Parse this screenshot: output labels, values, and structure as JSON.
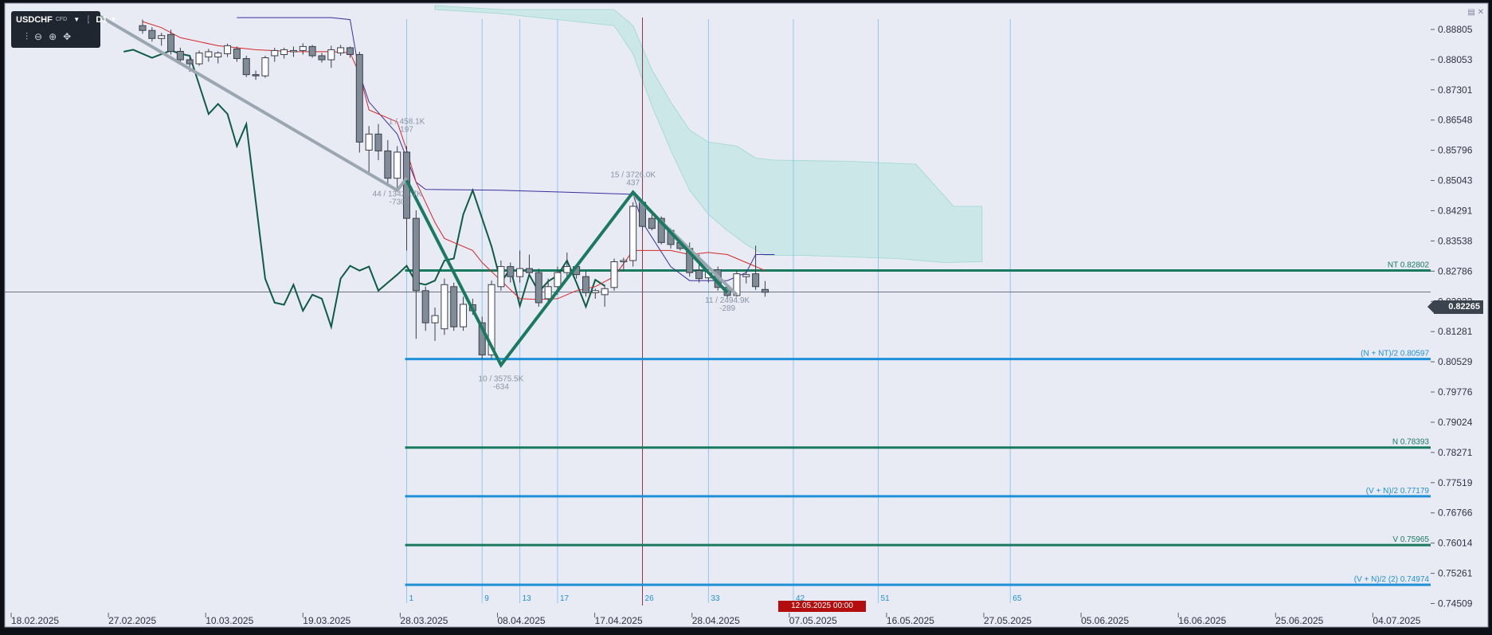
{
  "toolbar": {
    "symbol": "USDCHF",
    "symbol_tag": "CFD",
    "timeframe": "D1",
    "tools": [
      "indicators-icon",
      "zoom-out-icon",
      "zoom-in-icon",
      "crosshair-icon"
    ]
  },
  "colors": {
    "background": "#e8eaf4",
    "bull_candle": "#ffffff",
    "bear_candle": "#7f8b96",
    "candle_outline": "#3a3f4a",
    "tenkan": "#d62828",
    "kijun": "#3b2fa0",
    "chikou": "#0f5c46",
    "cloud": "#bfe6e2",
    "wave_green": "#1a7a60",
    "wave_grey": "#9aa6b0",
    "level_green": "#1a7a60",
    "level_blue": "#1e90d8",
    "vline": "#8fc9ee",
    "current_date_line": "#8a3a4a"
  },
  "current_price": "0.82265",
  "current_date_flag": "12.05.2025 00:00",
  "chart_data": {
    "type": "candlestick",
    "symbol": "USDCHF",
    "timeframe": "D1",
    "ylim": [
      0.7436,
      0.8934
    ],
    "y_ticks": [
      "0.88805",
      "0.88053",
      "0.87301",
      "0.86548",
      "0.85796",
      "0.85043",
      "0.84291",
      "0.83538",
      "0.82786",
      "0.82033",
      "0.81281",
      "0.80529",
      "0.79776",
      "0.79024",
      "0.78271",
      "0.77519",
      "0.76766",
      "0.76014",
      "0.75261",
      "0.74509"
    ],
    "x_labels": [
      "18.02.2025",
      "27.02.2025",
      "10.03.2025",
      "19.03.2025",
      "28.03.2025",
      "08.04.2025",
      "17.04.2025",
      "28.04.2025",
      "07.05.2025",
      "16.05.2025",
      "27.05.2025",
      "05.06.2025",
      "16.06.2025",
      "25.06.2025",
      "04.07.2025"
    ],
    "candles": [
      {
        "x": 0,
        "o": 0.889,
        "h": 0.8905,
        "l": 0.887,
        "c": 0.8878
      },
      {
        "x": 1,
        "o": 0.8878,
        "h": 0.8886,
        "l": 0.885,
        "c": 0.8858
      },
      {
        "x": 2,
        "o": 0.8858,
        "h": 0.8872,
        "l": 0.884,
        "c": 0.8865
      },
      {
        "x": 3,
        "o": 0.8868,
        "h": 0.888,
        "l": 0.8818,
        "c": 0.8826
      },
      {
        "x": 4,
        "o": 0.8826,
        "h": 0.8835,
        "l": 0.8795,
        "c": 0.8805
      },
      {
        "x": 5,
        "o": 0.8805,
        "h": 0.8815,
        "l": 0.8775,
        "c": 0.8795
      },
      {
        "x": 6,
        "o": 0.8795,
        "h": 0.8828,
        "l": 0.879,
        "c": 0.8822
      },
      {
        "x": 7,
        "o": 0.8812,
        "h": 0.8832,
        "l": 0.88,
        "c": 0.8825
      },
      {
        "x": 8,
        "o": 0.8812,
        "h": 0.8826,
        "l": 0.8796,
        "c": 0.8822
      },
      {
        "x": 9,
        "o": 0.882,
        "h": 0.8845,
        "l": 0.8812,
        "c": 0.884
      },
      {
        "x": 10,
        "o": 0.8832,
        "h": 0.8838,
        "l": 0.88,
        "c": 0.8808
      },
      {
        "x": 11,
        "o": 0.8808,
        "h": 0.8815,
        "l": 0.8762,
        "c": 0.8768
      },
      {
        "x": 12,
        "o": 0.8768,
        "h": 0.8778,
        "l": 0.8755,
        "c": 0.8765
      },
      {
        "x": 13,
        "o": 0.8765,
        "h": 0.8815,
        "l": 0.876,
        "c": 0.881
      },
      {
        "x": 14,
        "o": 0.8815,
        "h": 0.8835,
        "l": 0.88,
        "c": 0.8828
      },
      {
        "x": 15,
        "o": 0.8818,
        "h": 0.8835,
        "l": 0.8808,
        "c": 0.883
      },
      {
        "x": 16,
        "o": 0.8825,
        "h": 0.8838,
        "l": 0.8812,
        "c": 0.8828
      },
      {
        "x": 17,
        "o": 0.8828,
        "h": 0.8846,
        "l": 0.8818,
        "c": 0.8838
      },
      {
        "x": 18,
        "o": 0.8838,
        "h": 0.8842,
        "l": 0.881,
        "c": 0.8815
      },
      {
        "x": 19,
        "o": 0.8815,
        "h": 0.8822,
        "l": 0.8798,
        "c": 0.8805
      },
      {
        "x": 20,
        "o": 0.8805,
        "h": 0.884,
        "l": 0.8785,
        "c": 0.883
      },
      {
        "x": 21,
        "o": 0.8822,
        "h": 0.8842,
        "l": 0.8815,
        "c": 0.8835
      },
      {
        "x": 22,
        "o": 0.8835,
        "h": 0.8838,
        "l": 0.881,
        "c": 0.8818
      },
      {
        "x": 23,
        "o": 0.8818,
        "h": 0.8825,
        "l": 0.8574,
        "c": 0.86
      },
      {
        "x": 24,
        "o": 0.858,
        "h": 0.864,
        "l": 0.852,
        "c": 0.862
      },
      {
        "x": 25,
        "o": 0.862,
        "h": 0.8645,
        "l": 0.8555,
        "c": 0.8578
      },
      {
        "x": 26,
        "o": 0.8578,
        "h": 0.8605,
        "l": 0.8492,
        "c": 0.851
      },
      {
        "x": 27,
        "o": 0.851,
        "h": 0.859,
        "l": 0.8485,
        "c": 0.8575
      },
      {
        "x": 28,
        "o": 0.8575,
        "h": 0.859,
        "l": 0.833,
        "c": 0.841
      },
      {
        "x": 29,
        "o": 0.841,
        "h": 0.843,
        "l": 0.811,
        "c": 0.823
      },
      {
        "x": 30,
        "o": 0.823,
        "h": 0.824,
        "l": 0.813,
        "c": 0.815
      },
      {
        "x": 31,
        "o": 0.815,
        "h": 0.8188,
        "l": 0.8105,
        "c": 0.8168
      },
      {
        "x": 32,
        "o": 0.8135,
        "h": 0.826,
        "l": 0.812,
        "c": 0.8245
      },
      {
        "x": 33,
        "o": 0.824,
        "h": 0.825,
        "l": 0.813,
        "c": 0.814
      },
      {
        "x": 34,
        "o": 0.814,
        "h": 0.8215,
        "l": 0.813,
        "c": 0.8196
      },
      {
        "x": 35,
        "o": 0.8195,
        "h": 0.821,
        "l": 0.817,
        "c": 0.818
      },
      {
        "x": 36,
        "o": 0.815,
        "h": 0.8165,
        "l": 0.806,
        "c": 0.807
      },
      {
        "x": 37,
        "o": 0.807,
        "h": 0.8255,
        "l": 0.806,
        "c": 0.8245
      },
      {
        "x": 38,
        "o": 0.824,
        "h": 0.8305,
        "l": 0.823,
        "c": 0.829
      },
      {
        "x": 39,
        "o": 0.829,
        "h": 0.83,
        "l": 0.825,
        "c": 0.8265
      },
      {
        "x": 40,
        "o": 0.8265,
        "h": 0.833,
        "l": 0.825,
        "c": 0.8285
      },
      {
        "x": 41,
        "o": 0.8285,
        "h": 0.832,
        "l": 0.827,
        "c": 0.8275
      },
      {
        "x": 42,
        "o": 0.8275,
        "h": 0.8285,
        "l": 0.819,
        "c": 0.82
      },
      {
        "x": 43,
        "o": 0.821,
        "h": 0.826,
        "l": 0.82,
        "c": 0.824
      },
      {
        "x": 44,
        "o": 0.824,
        "h": 0.829,
        "l": 0.822,
        "c": 0.8275
      },
      {
        "x": 45,
        "o": 0.8275,
        "h": 0.8325,
        "l": 0.8255,
        "c": 0.829
      },
      {
        "x": 46,
        "o": 0.829,
        "h": 0.8295,
        "l": 0.826,
        "c": 0.827
      },
      {
        "x": 47,
        "o": 0.8265,
        "h": 0.828,
        "l": 0.8215,
        "c": 0.8225
      },
      {
        "x": 48,
        "o": 0.8225,
        "h": 0.8235,
        "l": 0.821,
        "c": 0.823
      },
      {
        "x": 49,
        "o": 0.822,
        "h": 0.8245,
        "l": 0.819,
        "c": 0.8235
      },
      {
        "x": 50,
        "o": 0.8238,
        "h": 0.831,
        "l": 0.823,
        "c": 0.8302
      },
      {
        "x": 51,
        "o": 0.8302,
        "h": 0.8312,
        "l": 0.828,
        "c": 0.8305
      },
      {
        "x": 52,
        "o": 0.8305,
        "h": 0.845,
        "l": 0.829,
        "c": 0.844
      },
      {
        "x": 53,
        "o": 0.845,
        "h": 0.8455,
        "l": 0.838,
        "c": 0.839
      },
      {
        "x": 54,
        "o": 0.841,
        "h": 0.8422,
        "l": 0.838,
        "c": 0.8385
      },
      {
        "x": 55,
        "o": 0.841,
        "h": 0.8415,
        "l": 0.8345,
        "c": 0.835
      },
      {
        "x": 56,
        "o": 0.838,
        "h": 0.8385,
        "l": 0.8335,
        "c": 0.8345
      },
      {
        "x": 57,
        "o": 0.835,
        "h": 0.8355,
        "l": 0.833,
        "c": 0.8335
      },
      {
        "x": 58,
        "o": 0.8335,
        "h": 0.835,
        "l": 0.8265,
        "c": 0.8275
      },
      {
        "x": 59,
        "o": 0.828,
        "h": 0.832,
        "l": 0.825,
        "c": 0.826
      },
      {
        "x": 60,
        "o": 0.8262,
        "h": 0.829,
        "l": 0.825,
        "c": 0.8282
      },
      {
        "x": 61,
        "o": 0.8282,
        "h": 0.829,
        "l": 0.823,
        "c": 0.8238
      },
      {
        "x": 62,
        "o": 0.8238,
        "h": 0.8245,
        "l": 0.821,
        "c": 0.8218
      },
      {
        "x": 63,
        "o": 0.8218,
        "h": 0.828,
        "l": 0.8215,
        "c": 0.8272
      },
      {
        "x": 64,
        "o": 0.8265,
        "h": 0.8278,
        "l": 0.8248,
        "c": 0.827
      },
      {
        "x": 65,
        "o": 0.8272,
        "h": 0.8342,
        "l": 0.8232,
        "c": 0.824
      },
      {
        "x": 66,
        "o": 0.8233,
        "h": 0.8254,
        "l": 0.8215,
        "c": 0.8226
      }
    ],
    "tenkan": [
      [
        0,
        0.89
      ],
      [
        2,
        0.8885
      ],
      [
        4,
        0.886
      ],
      [
        8,
        0.884
      ],
      [
        12,
        0.883
      ],
      [
        16,
        0.8825
      ],
      [
        20,
        0.8825
      ],
      [
        22,
        0.8822
      ],
      [
        23,
        0.877
      ],
      [
        24,
        0.868
      ],
      [
        27,
        0.865
      ],
      [
        28,
        0.858
      ],
      [
        29,
        0.85
      ],
      [
        30,
        0.845
      ],
      [
        31,
        0.84
      ],
      [
        32,
        0.836
      ],
      [
        35,
        0.833
      ],
      [
        36,
        0.83
      ],
      [
        38,
        0.8255
      ],
      [
        40,
        0.821
      ],
      [
        42,
        0.8208
      ],
      [
        44,
        0.821
      ],
      [
        46,
        0.823
      ],
      [
        48,
        0.824
      ],
      [
        50,
        0.8265
      ],
      [
        52,
        0.833
      ],
      [
        53,
        0.833
      ],
      [
        56,
        0.833
      ],
      [
        58,
        0.832
      ],
      [
        60,
        0.8325
      ],
      [
        62,
        0.832
      ],
      [
        64,
        0.83
      ],
      [
        66,
        0.828
      ]
    ],
    "kijun": [
      [
        10,
        0.891
      ],
      [
        20,
        0.891
      ],
      [
        22,
        0.8905
      ],
      [
        23,
        0.877
      ],
      [
        24,
        0.87
      ],
      [
        27,
        0.862
      ],
      [
        28,
        0.856
      ],
      [
        29,
        0.85
      ],
      [
        30,
        0.8482
      ],
      [
        38,
        0.848
      ],
      [
        45,
        0.8475
      ],
      [
        52,
        0.847
      ],
      [
        53,
        0.84
      ],
      [
        56,
        0.829
      ],
      [
        58,
        0.8255
      ],
      [
        62,
        0.8255
      ],
      [
        64,
        0.8275
      ],
      [
        65,
        0.832
      ],
      [
        67,
        0.832
      ]
    ],
    "chikou": [
      [
        -2,
        0.8825
      ],
      [
        -1,
        0.883
      ],
      [
        1,
        0.881
      ],
      [
        3,
        0.8828
      ],
      [
        4,
        0.882
      ],
      [
        5,
        0.8815
      ],
      [
        7,
        0.867
      ],
      [
        8,
        0.8695
      ],
      [
        9,
        0.867
      ],
      [
        10,
        0.859
      ],
      [
        11,
        0.8645
      ],
      [
        13,
        0.826
      ],
      [
        14,
        0.82
      ],
      [
        15,
        0.8195
      ],
      [
        16,
        0.8245
      ],
      [
        17,
        0.818
      ],
      [
        18,
        0.822
      ],
      [
        19,
        0.821
      ],
      [
        20,
        0.814
      ],
      [
        21,
        0.826
      ],
      [
        22,
        0.8292
      ],
      [
        23,
        0.828
      ],
      [
        24,
        0.829
      ],
      [
        25,
        0.823
      ],
      [
        26,
        0.825
      ],
      [
        27,
        0.827
      ],
      [
        28,
        0.8292
      ],
      [
        29,
        0.825
      ],
      [
        30,
        0.8245
      ],
      [
        31,
        0.8255
      ],
      [
        32,
        0.8305
      ],
      [
        33,
        0.831
      ],
      [
        34,
        0.842
      ],
      [
        35,
        0.848
      ],
      [
        36,
        0.841
      ],
      [
        37,
        0.834
      ],
      [
        38,
        0.825
      ],
      [
        39,
        0.8285
      ],
      [
        40,
        0.8192
      ],
      [
        41,
        0.827
      ],
      [
        42,
        0.8227
      ],
      [
        43,
        0.8253
      ],
      [
        44,
        0.8268
      ],
      [
        45,
        0.8305
      ],
      [
        46,
        0.825
      ],
      [
        47,
        0.819
      ],
      [
        48,
        0.8257
      ],
      [
        49,
        0.8242
      ]
    ],
    "cloud_upper": [
      [
        31,
        0.894
      ],
      [
        38,
        0.893
      ],
      [
        50,
        0.893
      ],
      [
        52,
        0.889
      ],
      [
        54,
        0.878
      ],
      [
        56,
        0.87
      ],
      [
        58,
        0.863
      ],
      [
        60,
        0.86
      ],
      [
        63,
        0.859
      ],
      [
        65,
        0.856
      ],
      [
        67,
        0.8555
      ],
      [
        75,
        0.8552
      ],
      [
        82,
        0.8545
      ],
      [
        86,
        0.844
      ],
      [
        89,
        0.844
      ]
    ],
    "cloud_lower": [
      [
        31,
        0.893
      ],
      [
        38,
        0.892
      ],
      [
        50,
        0.889
      ],
      [
        52,
        0.882
      ],
      [
        54,
        0.869
      ],
      [
        56,
        0.858
      ],
      [
        58,
        0.848
      ],
      [
        60,
        0.842
      ],
      [
        62,
        0.838
      ],
      [
        64,
        0.8345
      ],
      [
        66,
        0.8318
      ],
      [
        70,
        0.8318
      ],
      [
        80,
        0.831
      ],
      [
        85,
        0.83
      ],
      [
        89,
        0.8302
      ]
    ],
    "wave_green": [
      [
        28,
        0.8505
      ],
      [
        38,
        0.8045
      ],
      [
        52,
        0.8475
      ],
      [
        62,
        0.8225
      ]
    ],
    "wave_grey": [
      [
        -5,
        0.892
      ],
      [
        27,
        0.848
      ],
      [
        28,
        0.851
      ]
    ],
    "wave_grey2": [
      [
        52,
        0.847
      ],
      [
        63,
        0.822
      ]
    ],
    "levels": [
      {
        "label": "NT 0.82802",
        "value": 0.82802,
        "color": "green"
      },
      {
        "label": "(N + NT)/2 0.80597",
        "value": 0.80597,
        "color": "blue"
      },
      {
        "label": "N 0.78393",
        "value": 0.78393,
        "color": "green"
      },
      {
        "label": "(V + N)/2 0.77179",
        "value": 0.77179,
        "color": "blue"
      },
      {
        "label": "V 0.75965",
        "value": 0.75965,
        "color": "green"
      },
      {
        "label": "(V + N)/2 (2) 0.74974",
        "value": 0.74974,
        "color": "blue"
      }
    ],
    "levels_start_x": 28,
    "vlines": [
      {
        "x": 28,
        "label": "1"
      },
      {
        "x": 36,
        "label": "9"
      },
      {
        "x": 40,
        "label": "13"
      },
      {
        "x": 44,
        "label": "17"
      },
      {
        "x": 53,
        "label": "26"
      },
      {
        "x": 60,
        "label": "33"
      },
      {
        "x": 69,
        "label": "42"
      },
      {
        "x": 78,
        "label": "51"
      },
      {
        "x": 92,
        "label": "65"
      }
    ],
    "current_date_x": 53,
    "annotations": [
      {
        "x": 28,
        "y": 0.8645,
        "lines": [
          "1 / 458.1K",
          "197"
        ]
      },
      {
        "x": 27,
        "y": 0.8465,
        "lines": [
          "44 / 13426.7K",
          "-730"
        ]
      },
      {
        "x": 38,
        "y": 0.8004,
        "lines": [
          "10 / 3575.5K",
          "-634"
        ]
      },
      {
        "x": 52,
        "y": 0.8512,
        "lines": [
          "15 / 3726.0K",
          "437"
        ]
      },
      {
        "x": 62,
        "y": 0.82,
        "lines": [
          "11 / 2494.9K",
          "-289"
        ]
      }
    ]
  }
}
